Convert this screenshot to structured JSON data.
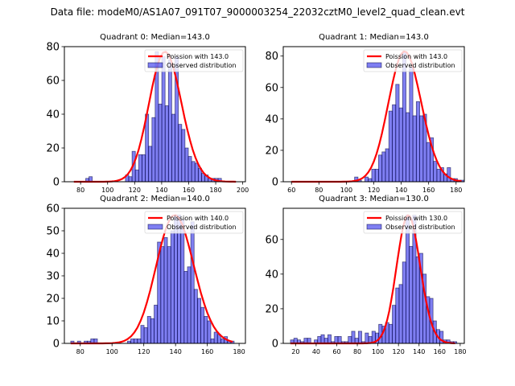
{
  "figure": {
    "suptitle": "Data file: modeM0/AS1A07_091T07_9000003254_22032cztM0_level2_quad_clean.evt"
  },
  "chart_data": [
    {
      "type": "bar",
      "title": "Quadrant 0: Median=143.0",
      "legend": [
        "Poission with 143.0",
        "Observed distribution"
      ],
      "legend_position": "top-right",
      "xlim": [
        68,
        202
      ],
      "ylim": [
        0,
        80
      ],
      "xticks": [
        80,
        100,
        120,
        140,
        160,
        180,
        200
      ],
      "yticks": [
        0,
        20,
        40,
        60,
        80
      ],
      "bin_width": 2.45,
      "bins_start": [
        74.0,
        76.4,
        78.9,
        81.3,
        83.8,
        86.2,
        88.7,
        91.1,
        93.6,
        96.0,
        98.5,
        100.9,
        103.4,
        105.8,
        108.3,
        110.7,
        113.2,
        115.6,
        118.1,
        120.5,
        123.0,
        125.4,
        127.9,
        130.3,
        132.8,
        135.2,
        137.7,
        140.1,
        142.6,
        145.0,
        147.5,
        149.9,
        152.4,
        154.8,
        157.3,
        159.7,
        162.2,
        164.6,
        167.1,
        169.5,
        172.0,
        174.4,
        176.9,
        179.3,
        181.8
      ],
      "values": [
        0,
        0,
        0,
        0,
        2,
        3,
        0,
        0,
        0,
        0,
        0,
        0,
        0,
        0,
        0,
        0,
        4,
        3,
        18,
        7,
        16,
        16,
        40,
        21,
        38,
        77,
        46,
        74,
        45,
        72,
        40,
        74,
        34,
        31,
        20,
        15,
        12,
        11,
        8,
        5,
        4,
        2,
        2,
        2,
        2
      ],
      "poisson_mean": 143.0,
      "poisson_peak": 77
    },
    {
      "type": "bar",
      "title": "Quadrant 1: Median=143.0",
      "legend": [
        "Poission with 143.0",
        "Observed distribution"
      ],
      "legend_position": "top-right",
      "xlim": [
        54,
        186
      ],
      "ylim": [
        0,
        86
      ],
      "xticks": [
        60,
        80,
        100,
        120,
        140,
        160,
        180
      ],
      "yticks": [
        0,
        20,
        40,
        60,
        80
      ],
      "bin_width": 2.5,
      "bins_start": [
        103.5,
        106.0,
        108.5,
        111.0,
        113.5,
        116.0,
        118.5,
        121.0,
        123.5,
        126.0,
        128.5,
        131.0,
        133.5,
        136.0,
        138.5,
        141.0,
        143.5,
        146.0,
        148.5,
        151.0,
        153.5,
        156.0,
        158.5,
        161.0,
        163.5,
        166.0,
        168.5,
        171.0,
        173.5,
        176.0,
        178.5,
        181.0,
        183.5
      ],
      "values": [
        0,
        3,
        1,
        0,
        3,
        2,
        8,
        8,
        17,
        19,
        21,
        45,
        49,
        62,
        47,
        83,
        44,
        73,
        42,
        51,
        42,
        43,
        25,
        28,
        13,
        8,
        9,
        5,
        9,
        2,
        2,
        1,
        1
      ],
      "poisson_mean": 143.0,
      "poisson_peak": 83
    },
    {
      "type": "bar",
      "title": "Quadrant 2: Median=140.0",
      "legend": [
        "Poission with 140.0",
        "Observed distribution"
      ],
      "legend_position": "top-right",
      "xlim": [
        70,
        184
      ],
      "ylim": [
        0,
        60
      ],
      "xticks": [
        80,
        100,
        120,
        140,
        160,
        180
      ],
      "yticks": [
        0,
        10,
        20,
        30,
        40,
        50,
        60
      ],
      "bin_width": 2.1,
      "bins_start": [
        74.0,
        76.1,
        78.2,
        80.3,
        82.4,
        84.5,
        86.6,
        88.7,
        90.8,
        92.9,
        95.0,
        97.1,
        99.2,
        101.3,
        103.4,
        105.5,
        107.6,
        109.7,
        111.8,
        113.9,
        116.0,
        118.1,
        120.2,
        122.3,
        124.4,
        126.5,
        128.6,
        130.7,
        132.8,
        134.9,
        137.0,
        139.1,
        141.2,
        143.3,
        145.4,
        147.5,
        149.6,
        151.7,
        153.8,
        155.9,
        158.0,
        160.1,
        162.2,
        164.3,
        166.4,
        168.5,
        170.6,
        172.7,
        174.8,
        176.9
      ],
      "values": [
        1,
        0,
        1,
        0,
        1,
        1,
        2,
        2,
        0,
        0,
        0,
        0,
        0,
        0,
        0,
        0,
        0,
        1,
        2,
        2,
        2,
        8,
        7,
        12,
        11,
        17,
        45,
        43,
        47,
        43,
        50,
        57,
        57,
        55,
        32,
        34,
        54,
        24,
        20,
        16,
        12,
        10,
        2,
        5,
        4,
        2,
        3,
        1,
        1,
        0
      ],
      "poisson_mean": 140.0,
      "poisson_peak": 57
    },
    {
      "type": "bar",
      "title": "Quadrant 3: Median=130.0",
      "legend": [
        "Poission with 130.0",
        "Observed distribution"
      ],
      "legend_position": "top-right",
      "xlim": [
        8,
        184
      ],
      "ylim": [
        0,
        78
      ],
      "xticks": [
        20,
        40,
        60,
        80,
        100,
        120,
        140,
        160,
        180
      ],
      "yticks": [
        0,
        20,
        40,
        60
      ],
      "bin_width": 3.3,
      "bins_start": [
        15.0,
        18.3,
        21.6,
        24.9,
        28.2,
        31.5,
        34.8,
        38.1,
        41.4,
        44.7,
        48.0,
        51.3,
        54.6,
        57.9,
        61.2,
        64.5,
        67.8,
        71.1,
        74.4,
        77.7,
        81.0,
        84.3,
        87.6,
        90.9,
        94.2,
        97.5,
        100.8,
        104.1,
        107.4,
        110.7,
        114.0,
        117.3,
        120.6,
        123.9,
        127.2,
        130.5,
        133.8,
        137.1,
        140.4,
        143.7,
        147.0,
        150.3,
        153.6,
        156.9,
        160.2,
        163.5,
        166.8,
        170.1,
        173.4
      ],
      "values": [
        2,
        3,
        2,
        1,
        3,
        3,
        0,
        2,
        4,
        5,
        3,
        5,
        1,
        4,
        4,
        1,
        1,
        4,
        7,
        3,
        7,
        1,
        6,
        4,
        7,
        6,
        11,
        10,
        12,
        11,
        22,
        32,
        34,
        47,
        74,
        56,
        74,
        50,
        52,
        40,
        27,
        26,
        13,
        8,
        7,
        2,
        2,
        1,
        1
      ],
      "poisson_mean": 130.0,
      "poisson_peak": 74
    }
  ]
}
